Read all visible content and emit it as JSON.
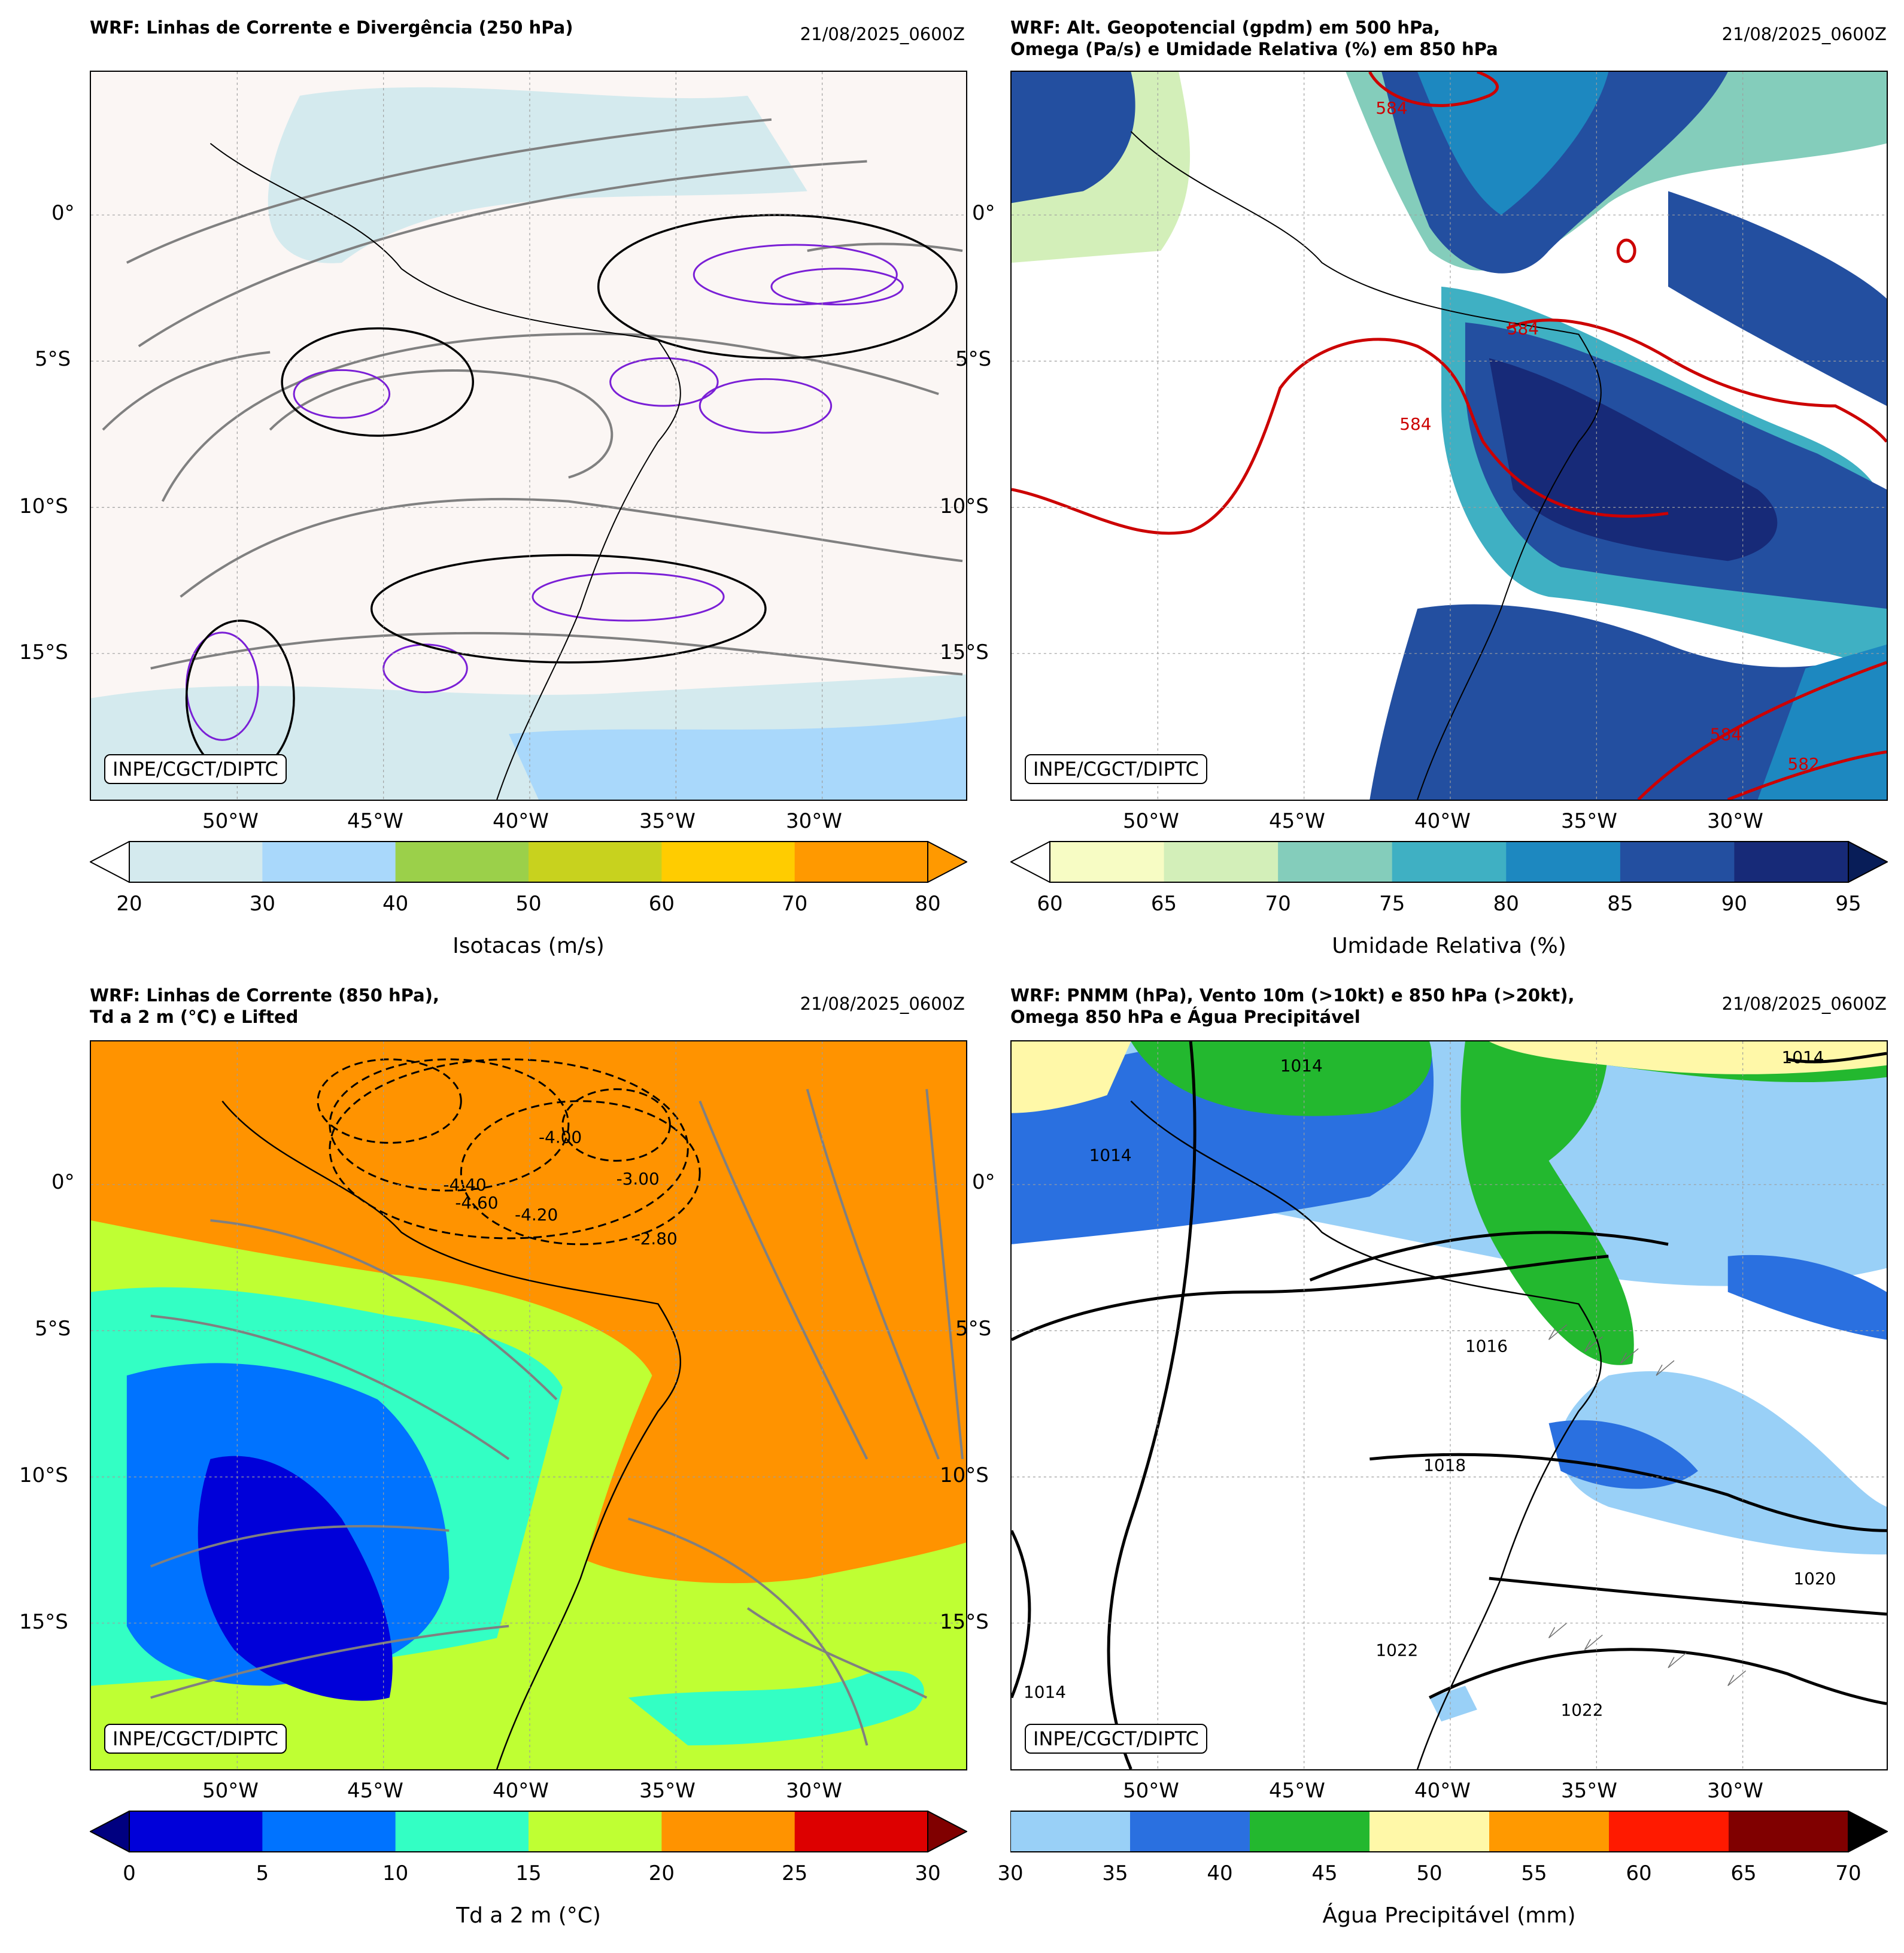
{
  "panels": [
    {
      "title": "WRF: Linhas de Corrente e Divergência (250 hPa)",
      "date": "21/08/2025_0600Z",
      "credit": "INPE/CGCT/DIPTC",
      "xticks": [
        "50°W",
        "45°W",
        "40°W",
        "35°W",
        "30°W"
      ],
      "yticks": [
        "0°",
        "5°S",
        "10°S",
        "15°S"
      ],
      "colorbar": {
        "label": "Isotacas (m/s)",
        "ticks": [
          "20",
          "30",
          "40",
          "50",
          "60",
          "70",
          "80"
        ],
        "colors": [
          "#d4eaee",
          "#a9d8fb",
          "#9bd04a",
          "#c8d21e",
          "#ffcc00",
          "#ff9900"
        ],
        "extend_low": "#ffffff",
        "extend_high": "#ff9900"
      }
    },
    {
      "title": "WRF: Alt. Geopotencial (gpdm) em 500 hPa,\nOmega (Pa/s) e Umidade Relativa (%) em 850 hPa",
      "date": "21/08/2025_0600Z",
      "credit": "INPE/CGCT/DIPTC",
      "xticks": [
        "50°W",
        "45°W",
        "40°W",
        "35°W",
        "30°W"
      ],
      "yticks": [
        "0°",
        "5°S",
        "10°S",
        "15°S"
      ],
      "contour_labels": [
        "584",
        "584",
        "584",
        "584",
        "582"
      ],
      "colorbar": {
        "label": "Umidade Relativa (%)",
        "ticks": [
          "60",
          "65",
          "70",
          "75",
          "80",
          "85",
          "90",
          "95"
        ],
        "colors": [
          "#f7fcc4",
          "#d3efb9",
          "#84cdbb",
          "#3fb0c3",
          "#1d88c0",
          "#234fa0",
          "#172a78"
        ],
        "extend_low": "#ffffff",
        "extend_high": "#081d58"
      }
    },
    {
      "title": "WRF: Linhas de Corrente (850 hPa),\nTd a 2 m (°C) e Lifted",
      "date": "21/08/2025_0600Z",
      "credit": "INPE/CGCT/DIPTC",
      "xticks": [
        "50°W",
        "45°W",
        "40°W",
        "35°W",
        "30°W"
      ],
      "yticks": [
        "0°",
        "5°S",
        "10°S",
        "15°S"
      ],
      "contour_labels": [
        "-4.00",
        "-4.40",
        "-4.60",
        "-4.20",
        "-3.00",
        "-2.80"
      ],
      "colorbar": {
        "label": "Td a 2 m (°C)",
        "ticks": [
          "0",
          "5",
          "10",
          "15",
          "20",
          "25",
          "30"
        ],
        "colors": [
          "#0000d9",
          "#0073ff",
          "#33ffc4",
          "#bfff33",
          "#ff9300",
          "#dd0000"
        ],
        "extend_low": "#000080",
        "extend_high": "#800000"
      }
    },
    {
      "title": "WRF: PNMM (hPa), Vento 10m (>10kt) e 850 hPa (>20kt),\nOmega 850 hPa e Água Precipitável",
      "date": "21/08/2025_0600Z",
      "credit": "INPE/CGCT/DIPTC",
      "xticks": [
        "50°W",
        "45°W",
        "40°W",
        "35°W",
        "30°W"
      ],
      "yticks": [
        "0°",
        "5°S",
        "10°S",
        "15°S"
      ],
      "contour_labels": [
        "1014",
        "1014",
        "1014",
        "1016",
        "1018",
        "1020",
        "1022",
        "1022",
        "1014"
      ],
      "colorbar": {
        "label": "Água Precipitável (mm)",
        "ticks": [
          "30",
          "35",
          "40",
          "45",
          "50",
          "55",
          "60",
          "65",
          "70"
        ],
        "colors": [
          "#99d0f7",
          "#2a70e0",
          "#23b82f",
          "#fff8a8",
          "#ff9900",
          "#ff1a00",
          "#800000"
        ],
        "extend_high": "#000000"
      }
    }
  ]
}
